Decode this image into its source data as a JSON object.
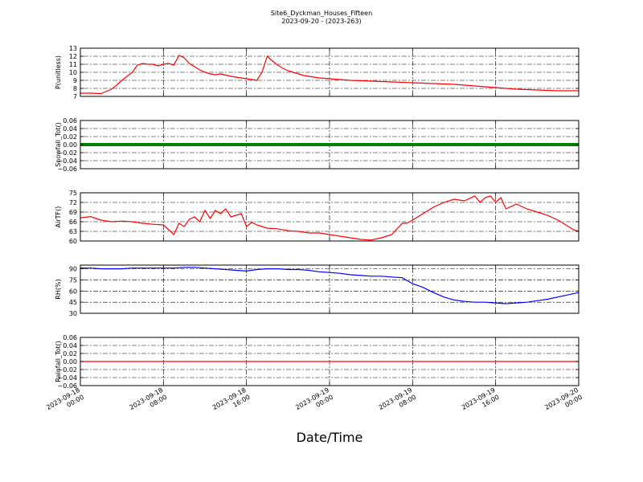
{
  "header": {
    "title": "Site6_Dyckman_Houses_Fifteen",
    "subtitle": "2023-09-20 - (2023-263)"
  },
  "chart_data": [
    {
      "type": "line",
      "ylabel": "P(unitless)",
      "ylim": [
        7,
        13
      ],
      "yticks": [
        7,
        8,
        9,
        10,
        11,
        12,
        13
      ],
      "grid": true,
      "color": "#ff0000",
      "series": [
        {
          "x": [
            0,
            1,
            2,
            3,
            3.5,
            4,
            4.5,
            5,
            5.5,
            6,
            6.5,
            7,
            7.5,
            8,
            8.5,
            9,
            9.5,
            10,
            10.5,
            11,
            11.5,
            12,
            12.5,
            13,
            13.5,
            14,
            14.5,
            15,
            15.5,
            16,
            16.5,
            17,
            17.5,
            18,
            18.5,
            19,
            19.5,
            20,
            20.5,
            21,
            21.5,
            22,
            23,
            24,
            26,
            28,
            30,
            32,
            34,
            36,
            38,
            40,
            42,
            44,
            46,
            48
          ],
          "values": [
            7.4,
            7.4,
            7.35,
            7.9,
            8.4,
            9.0,
            9.5,
            10.0,
            10.9,
            11.1,
            11.0,
            11.0,
            10.8,
            11.0,
            11.1,
            10.9,
            12.1,
            11.8,
            11.1,
            10.7,
            10.3,
            10.0,
            9.8,
            9.7,
            9.8,
            9.65,
            9.5,
            9.4,
            9.3,
            9.2,
            9.1,
            9.0,
            10.0,
            12.0,
            11.4,
            10.9,
            10.5,
            10.2,
            10.0,
            9.8,
            9.6,
            9.5,
            9.3,
            9.2,
            9.0,
            8.9,
            8.8,
            8.7,
            8.6,
            8.5,
            8.3,
            8.1,
            7.9,
            7.8,
            7.7,
            7.7
          ]
        }
      ]
    },
    {
      "type": "line",
      "ylabel": "Snowfall_Tot()",
      "ylim": [
        -0.06,
        0.06
      ],
      "yticks": [
        -0.06,
        -0.04,
        -0.02,
        0.0,
        0.02,
        0.04,
        0.06
      ],
      "ytick_labels": [
        "−0.06",
        "−0.04",
        "−0.02",
        "0.00",
        "0.02",
        "0.04",
        "0.06"
      ],
      "grid": true,
      "color": "#008000",
      "series": [
        {
          "x": [
            0,
            48
          ],
          "values": [
            0,
            0
          ]
        }
      ]
    },
    {
      "type": "line",
      "ylabel": "AirTF()",
      "ylim": [
        60,
        75
      ],
      "yticks": [
        60,
        63,
        66,
        69,
        72,
        75
      ],
      "grid": true,
      "color": "#ff0000",
      "series": [
        {
          "x": [
            0,
            1,
            1.5,
            2,
            3,
            4,
            5,
            6,
            7,
            8,
            8.5,
            9,
            9.5,
            10,
            10.5,
            11,
            11.5,
            12,
            12.5,
            13,
            13.5,
            14,
            14.5,
            15,
            15.5,
            16,
            16.5,
            17,
            17.5,
            18,
            19,
            20,
            21,
            22,
            23,
            24,
            25,
            26,
            27,
            28,
            29,
            30,
            31,
            31.5,
            32,
            32.5,
            33,
            33.5,
            34,
            35,
            36,
            37,
            38,
            38.5,
            39,
            39.5,
            40,
            40.5,
            41,
            42,
            43,
            44,
            45,
            46,
            47,
            47.5,
            48
          ],
          "values": [
            67.2,
            67.6,
            67.0,
            66.5,
            66.0,
            66.2,
            66.0,
            65.5,
            65.2,
            65.0,
            63.5,
            62.0,
            65.5,
            64.5,
            66.8,
            67.5,
            66.0,
            69.5,
            67.0,
            69.5,
            68.5,
            70.0,
            67.5,
            68.0,
            68.5,
            64.5,
            65.8,
            65.0,
            64.5,
            64.0,
            63.8,
            63.2,
            63.0,
            62.5,
            62.5,
            62.0,
            61.5,
            61.0,
            60.5,
            60.3,
            61.0,
            62.0,
            65.5,
            65.6,
            66.5,
            67.5,
            68.5,
            69.5,
            70.5,
            72.0,
            73.0,
            72.5,
            74.0,
            72.0,
            73.5,
            74.0,
            72.0,
            73.5,
            70.0,
            71.5,
            70.0,
            69.0,
            68.0,
            66.5,
            64.5,
            63.5,
            63.0
          ]
        }
      ]
    },
    {
      "type": "line",
      "ylabel": "RH(%)",
      "ylim": [
        30,
        95
      ],
      "yticks": [
        30,
        45,
        60,
        75,
        90
      ],
      "grid": true,
      "color": "#0000ff",
      "series": [
        {
          "x": [
            0,
            1,
            2,
            3,
            4,
            5,
            6,
            7,
            8,
            9,
            10,
            11,
            12,
            13,
            14,
            15,
            16,
            17,
            18,
            19,
            20,
            21,
            22,
            23,
            24,
            25,
            26,
            27,
            28,
            29,
            30,
            31,
            32,
            33,
            34,
            35,
            36,
            37,
            38,
            39,
            40,
            41,
            42,
            43,
            44,
            45,
            46,
            47,
            48
          ],
          "values": [
            91,
            91,
            90,
            90,
            90,
            91,
            91,
            91,
            91,
            91,
            92,
            92,
            91,
            90,
            89,
            88,
            87,
            89,
            90,
            90,
            89,
            89,
            88,
            86,
            85,
            84,
            82,
            81,
            80,
            80,
            79,
            78,
            70,
            65,
            58,
            52,
            48,
            46,
            45,
            45,
            44,
            43,
            44,
            45,
            47,
            49,
            52,
            55,
            58
          ]
        }
      ]
    },
    {
      "type": "line",
      "ylabel": "Rainfall_Tot()",
      "ylim": [
        -0.06,
        0.06
      ],
      "yticks": [
        -0.06,
        -0.04,
        -0.02,
        0.0,
        0.02,
        0.04,
        0.06
      ],
      "ytick_labels": [
        "−0.06",
        "−0.04",
        "−0.02",
        "0.00",
        "0.02",
        "0.04",
        "0.06"
      ],
      "grid": true,
      "color": "#ff0000",
      "series": [
        {
          "x": [
            0,
            48
          ],
          "values": [
            0,
            0
          ]
        }
      ]
    }
  ],
  "x_axis": {
    "xlabel": "Date/Time",
    "xlim": [
      0,
      48
    ],
    "ticks": [
      {
        "x": 0,
        "line1": "2023-09-18",
        "line2": "00:00"
      },
      {
        "x": 8,
        "line1": "2023-09-18",
        "line2": "08:00"
      },
      {
        "x": 16,
        "line1": "2023-09-18",
        "line2": "16:00"
      },
      {
        "x": 24,
        "line1": "2023-09-19",
        "line2": "00:00"
      },
      {
        "x": 32,
        "line1": "2023-09-19",
        "line2": "08:00"
      },
      {
        "x": 40,
        "line1": "2023-09-19",
        "line2": "16:00"
      },
      {
        "x": 48,
        "line1": "2023-09-20",
        "line2": "00:00"
      }
    ]
  }
}
